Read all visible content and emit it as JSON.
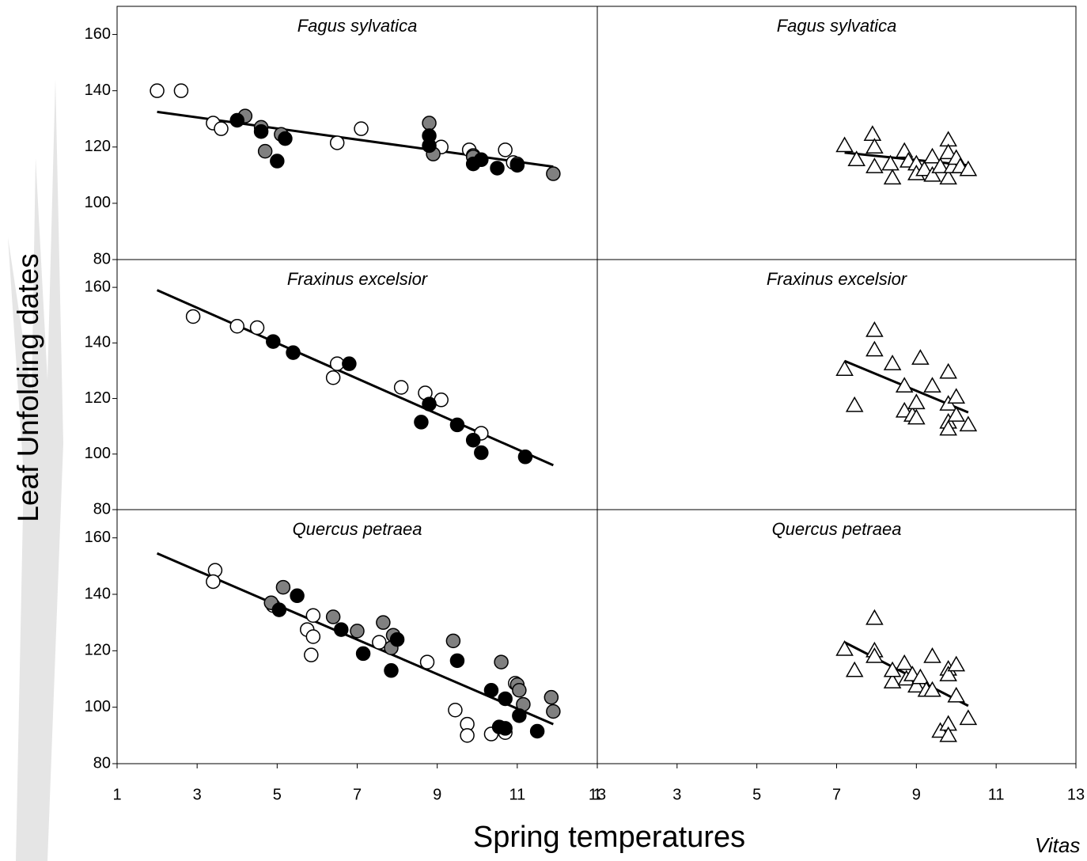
{
  "y_label": "Leaf Unfolding dates",
  "x_label": "Spring temperatures",
  "note": "Vitas",
  "chart_data": [
    {
      "type": "scatter",
      "title": "Fagus sylvatica",
      "xlim": [
        1,
        13
      ],
      "ylim": [
        80,
        170
      ],
      "yticks": [
        80,
        100,
        120,
        140,
        160
      ],
      "series": [
        {
          "color": "#ffffff",
          "marker": "circle",
          "x": [
            2,
            2.6,
            3.4,
            3.6,
            6.5,
            7.1,
            9.1,
            9.8,
            10.7,
            9.9,
            10.9,
            11
          ],
          "values": [
            140,
            140,
            128.5,
            126.5,
            121.5,
            126.5,
            120,
            119,
            119,
            117,
            114.5,
            114
          ]
        },
        {
          "color": "#808080",
          "marker": "circle",
          "x": [
            4.2,
            4.6,
            4.7,
            5.1,
            8.8,
            8.9,
            9.9,
            11.9
          ],
          "values": [
            131,
            127,
            118.5,
            124.5,
            128.5,
            117.5,
            116.5,
            110.5
          ]
        },
        {
          "color": "#000000",
          "marker": "circle",
          "x": [
            4,
            4.6,
            5.2,
            5,
            8.8,
            8.8,
            9.9,
            10.1,
            10.5,
            11
          ],
          "values": [
            129.5,
            125.5,
            123,
            115,
            124,
            120.5,
            114,
            115.5,
            112.5,
            113.5
          ]
        }
      ],
      "fit": {
        "color": "#000000",
        "x": [
          2,
          11.9
        ],
        "values": [
          132.5,
          113
        ]
      }
    },
    {
      "type": "scatter",
      "title": "Fagus sylvatica",
      "xlim": [
        1,
        13
      ],
      "ylim": [
        80,
        170
      ],
      "series": [
        {
          "color": "#ffffff",
          "marker": "triangle",
          "x": [
            7.2,
            7.5,
            7.9,
            7.95,
            7.95,
            8.35,
            8.4,
            8.7,
            8.8,
            9.0,
            9.0,
            9.2,
            9.4,
            9.4,
            9.6,
            9.8,
            9.8,
            9.8,
            9.9,
            10.0,
            10.1,
            10.3
          ],
          "values": [
            120.5,
            115.5,
            124.5,
            120,
            113,
            114,
            109,
            118.5,
            115,
            114,
            110.5,
            112,
            116.5,
            110,
            113,
            122.5,
            118,
            109,
            113,
            116,
            113,
            112
          ]
        }
      ],
      "fit": {
        "color": "#000000",
        "x": [
          7.2,
          10.3
        ],
        "values": [
          118,
          113.5
        ]
      }
    },
    {
      "type": "scatter",
      "title": "Fraxinus excelsior",
      "xlim": [
        1,
        13
      ],
      "ylim": [
        80,
        170
      ],
      "yticks": [
        80,
        100,
        120,
        140,
        160
      ],
      "series": [
        {
          "color": "#ffffff",
          "marker": "circle",
          "x": [
            2.9,
            4,
            4.5,
            6.5,
            6.4,
            8.1,
            8.7,
            9.1,
            10.1
          ],
          "values": [
            149.5,
            146,
            145.5,
            132.5,
            127.5,
            124,
            122,
            119.5,
            107.5
          ]
        },
        {
          "color": "#000000",
          "marker": "circle",
          "x": [
            4.9,
            5.4,
            6.8,
            8.8,
            8.6,
            9.5,
            9.9,
            10.1,
            11.2
          ],
          "values": [
            140.5,
            136.5,
            132.5,
            118,
            111.5,
            110.5,
            105,
            100.5,
            99
          ]
        }
      ],
      "fit": {
        "color": "#000000",
        "x": [
          2,
          11.9
        ],
        "values": [
          159,
          96
        ]
      }
    },
    {
      "type": "scatter",
      "title": "Fraxinus excelsior",
      "xlim": [
        1,
        13
      ],
      "ylim": [
        80,
        170
      ],
      "series": [
        {
          "color": "#ffffff",
          "marker": "triangle",
          "x": [
            7.2,
            7.45,
            7.95,
            7.95,
            8.4,
            8.7,
            8.7,
            8.9,
            9.0,
            9.0,
            9.1,
            9.4,
            9.8,
            9.8,
            9.8,
            9.8,
            10.0,
            10.0,
            10.3
          ],
          "values": [
            130.5,
            117.5,
            144.5,
            137.5,
            132.5,
            124.5,
            115.5,
            114,
            118.5,
            113,
            134.5,
            124.5,
            129.5,
            118,
            111.5,
            109,
            120.5,
            114,
            110.5
          ]
        }
      ],
      "fit": {
        "color": "#000000",
        "x": [
          7.2,
          10.3
        ],
        "values": [
          133.5,
          115
        ]
      }
    },
    {
      "type": "scatter",
      "title": "Quercus petraea",
      "xlim": [
        1,
        13
      ],
      "ylim": [
        80,
        170
      ],
      "yticks": [
        80,
        100,
        120,
        140,
        160
      ],
      "xticks": [
        1,
        3,
        5,
        7,
        9,
        11,
        13
      ],
      "series": [
        {
          "color": "#ffffff",
          "marker": "circle",
          "x": [
            3.45,
            3.4,
            5.9,
            5.75,
            5.9,
            5.85,
            4.9,
            7.55,
            8.75,
            9.45,
            9.75,
            9.75,
            10.35,
            10.7,
            10.95
          ],
          "values": [
            148.5,
            144.5,
            132.5,
            127.5,
            125,
            118.5,
            136,
            123,
            116,
            99,
            94,
            90,
            90.5,
            91,
            108.5
          ]
        },
        {
          "color": "#808080",
          "marker": "circle",
          "x": [
            4.85,
            5.15,
            6.4,
            7,
            7.65,
            7.9,
            7.85,
            9.4,
            10.6,
            11,
            11.05,
            11.15,
            11.85,
            11.9
          ],
          "values": [
            137,
            142.5,
            132,
            127,
            130,
            125.5,
            121,
            123.5,
            116,
            108,
            106,
            101,
            103.5,
            98.5
          ]
        },
        {
          "color": "#000000",
          "marker": "circle",
          "x": [
            5.05,
            5.5,
            6.6,
            7.15,
            8,
            7.85,
            9.5,
            10.35,
            10.7,
            10.55,
            10.7,
            11.05,
            11.5
          ],
          "values": [
            134.5,
            139.5,
            127.5,
            119,
            124,
            113,
            116.5,
            106,
            103,
            93,
            92.5,
            97,
            91.5
          ]
        }
      ],
      "fit": {
        "color": "#000000",
        "x": [
          2,
          11.9
        ],
        "values": [
          154.5,
          94
        ]
      }
    },
    {
      "type": "scatter",
      "title": "Quercus petraea",
      "xlim": [
        1,
        13
      ],
      "ylim": [
        80,
        170
      ],
      "xticks": [
        1,
        3,
        5,
        7,
        9,
        11,
        13
      ],
      "series": [
        {
          "color": "#ffffff",
          "marker": "triangle",
          "x": [
            7.2,
            7.45,
            7.95,
            7.95,
            7.95,
            8.4,
            8.4,
            8.7,
            8.75,
            8.9,
            9.0,
            9.1,
            9.25,
            9.4,
            9.4,
            9.6,
            9.8,
            9.8,
            9.8,
            9.8,
            10.0,
            10.0,
            10.3
          ],
          "values": [
            120.5,
            113,
            131.5,
            120,
            118,
            109,
            113,
            115.5,
            110,
            111.5,
            107.5,
            110.5,
            106,
            118,
            106,
            91.5,
            94,
            90,
            113.5,
            111.5,
            115,
            104,
            96
          ]
        }
      ],
      "fit": {
        "color": "#000000",
        "x": [
          7.2,
          10.3
        ],
        "values": [
          123,
          100.5
        ]
      }
    }
  ]
}
